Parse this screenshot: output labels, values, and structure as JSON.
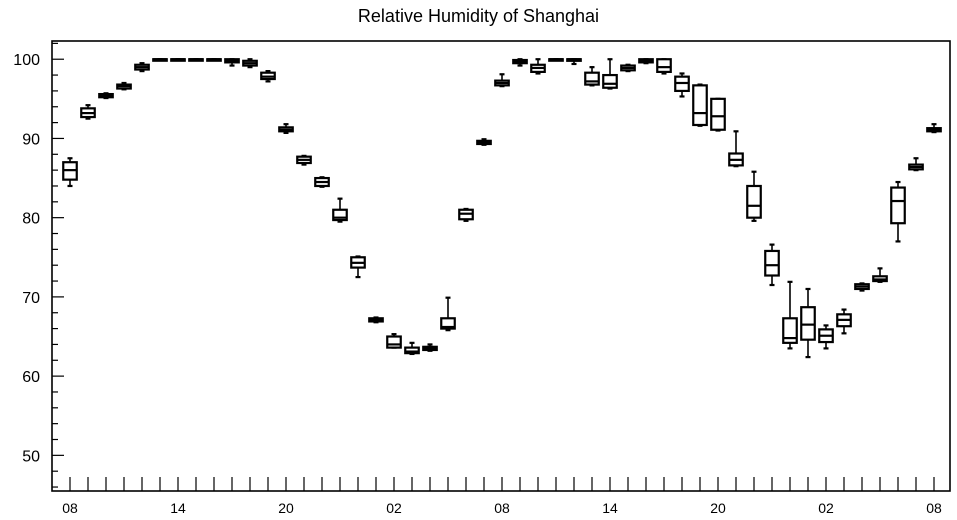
{
  "chart_data": {
    "type": "box",
    "title": "Relative Humidity of Shanghai",
    "xlabel": "",
    "ylabel": "",
    "ylim": [
      45.5,
      102.3
    ],
    "grid": false,
    "legend": "none",
    "y_ticks": [
      50,
      60,
      70,
      80,
      90,
      100
    ],
    "y_minor_step": 2,
    "x_ticks": [
      {
        "hour_index": 0,
        "label": "08"
      },
      {
        "hour_index": 6,
        "label": "14"
      },
      {
        "hour_index": 12,
        "label": "20"
      },
      {
        "hour_index": 18,
        "label": "02"
      },
      {
        "hour_index": 24,
        "label": "08"
      },
      {
        "hour_index": 30,
        "label": "14"
      },
      {
        "hour_index": 36,
        "label": "20"
      },
      {
        "hour_index": 42,
        "label": "02"
      },
      {
        "hour_index": 48,
        "label": "08"
      }
    ],
    "box_width_hours": 0.75,
    "boxes": [
      {
        "hour": 0,
        "whisker_low": 84.0,
        "q1": 84.8,
        "median": 86.0,
        "q3": 87.0,
        "whisker_high": 87.5
      },
      {
        "hour": 1,
        "whisker_low": 92.5,
        "q1": 92.7,
        "median": 93.2,
        "q3": 93.8,
        "whisker_high": 94.2
      },
      {
        "hour": 2,
        "whisker_low": 95.1,
        "q1": 95.2,
        "median": 95.4,
        "q3": 95.6,
        "whisker_high": 95.7
      },
      {
        "hour": 3,
        "whisker_low": 96.2,
        "q1": 96.3,
        "median": 96.6,
        "q3": 96.8,
        "whisker_high": 97.0
      },
      {
        "hour": 4,
        "whisker_low": 98.5,
        "q1": 98.7,
        "median": 99.0,
        "q3": 99.3,
        "whisker_high": 99.5
      },
      {
        "hour": 5,
        "whisker_low": 100.0,
        "q1": 100.0,
        "median": 100.0,
        "q3": 100.0,
        "whisker_high": 100.0
      },
      {
        "hour": 6,
        "whisker_low": 100.0,
        "q1": 100.0,
        "median": 100.0,
        "q3": 100.0,
        "whisker_high": 100.0
      },
      {
        "hour": 7,
        "whisker_low": 100.0,
        "q1": 100.0,
        "median": 100.0,
        "q3": 100.0,
        "whisker_high": 100.0
      },
      {
        "hour": 8,
        "whisker_low": 100.0,
        "q1": 100.0,
        "median": 100.0,
        "q3": 100.0,
        "whisker_high": 100.0
      },
      {
        "hour": 9,
        "whisker_low": 99.2,
        "q1": 99.6,
        "median": 99.8,
        "q3": 100.0,
        "whisker_high": 100.0
      },
      {
        "hour": 10,
        "whisker_low": 99.0,
        "q1": 99.2,
        "median": 99.5,
        "q3": 99.8,
        "whisker_high": 100.0
      },
      {
        "hour": 11,
        "whisker_low": 97.2,
        "q1": 97.5,
        "median": 97.8,
        "q3": 98.3,
        "whisker_high": 98.5
      },
      {
        "hour": 12,
        "whisker_low": 90.7,
        "q1": 90.9,
        "median": 91.1,
        "q3": 91.4,
        "whisker_high": 91.8
      },
      {
        "hour": 13,
        "whisker_low": 86.7,
        "q1": 86.9,
        "median": 87.3,
        "q3": 87.7,
        "whisker_high": 87.8
      },
      {
        "hour": 14,
        "whisker_low": 83.9,
        "q1": 84.0,
        "median": 84.5,
        "q3": 85.0,
        "whisker_high": 85.1
      },
      {
        "hour": 15,
        "whisker_low": 79.5,
        "q1": 79.7,
        "median": 80.0,
        "q3": 81.0,
        "whisker_high": 82.4
      },
      {
        "hour": 16,
        "whisker_low": 72.5,
        "q1": 73.7,
        "median": 74.3,
        "q3": 75.0,
        "whisker_high": 75.1
      },
      {
        "hour": 17,
        "whisker_low": 66.8,
        "q1": 66.9,
        "median": 67.1,
        "q3": 67.3,
        "whisker_high": 67.4
      },
      {
        "hour": 18,
        "whisker_low": 63.6,
        "q1": 63.6,
        "median": 64.0,
        "q3": 65.0,
        "whisker_high": 65.3
      },
      {
        "hour": 19,
        "whisker_low": 62.8,
        "q1": 62.9,
        "median": 63.1,
        "q3": 63.6,
        "whisker_high": 64.2
      },
      {
        "hour": 20,
        "whisker_low": 63.2,
        "q1": 63.3,
        "median": 63.5,
        "q3": 63.7,
        "whisker_high": 64.0
      },
      {
        "hour": 21,
        "whisker_low": 65.8,
        "q1": 66.0,
        "median": 66.2,
        "q3": 67.3,
        "whisker_high": 69.9
      },
      {
        "hour": 22,
        "whisker_low": 79.6,
        "q1": 79.8,
        "median": 80.5,
        "q3": 81.0,
        "whisker_high": 81.1
      },
      {
        "hour": 23,
        "whisker_low": 89.2,
        "q1": 89.3,
        "median": 89.5,
        "q3": 89.7,
        "whisker_high": 89.9
      },
      {
        "hour": 24,
        "whisker_low": 96.6,
        "q1": 96.7,
        "median": 97.0,
        "q3": 97.3,
        "whisker_high": 98.1
      },
      {
        "hour": 25,
        "whisker_low": 99.2,
        "q1": 99.5,
        "median": 99.7,
        "q3": 99.9,
        "whisker_high": 100.0
      },
      {
        "hour": 26,
        "whisker_low": 98.2,
        "q1": 98.4,
        "median": 98.9,
        "q3": 99.3,
        "whisker_high": 100.0
      },
      {
        "hour": 27,
        "whisker_low": 100.0,
        "q1": 100.0,
        "median": 100.0,
        "q3": 100.0,
        "whisker_high": 100.0
      },
      {
        "hour": 28,
        "whisker_low": 99.4,
        "q1": 99.8,
        "median": 100.0,
        "q3": 100.0,
        "whisker_high": 100.0
      },
      {
        "hour": 29,
        "whisker_low": 96.7,
        "q1": 96.8,
        "median": 97.2,
        "q3": 98.3,
        "whisker_high": 99.0
      },
      {
        "hour": 30,
        "whisker_low": 96.3,
        "q1": 96.4,
        "median": 96.9,
        "q3": 98.0,
        "whisker_high": 100.0
      },
      {
        "hour": 31,
        "whisker_low": 98.5,
        "q1": 98.6,
        "median": 98.9,
        "q3": 99.2,
        "whisker_high": 99.3
      },
      {
        "hour": 32,
        "whisker_low": 99.5,
        "q1": 99.6,
        "median": 99.8,
        "q3": 100.0,
        "whisker_high": 100.0
      },
      {
        "hour": 33,
        "whisker_low": 98.2,
        "q1": 98.4,
        "median": 99.0,
        "q3": 100.0,
        "whisker_high": 100.0
      },
      {
        "hour": 34,
        "whisker_low": 95.3,
        "q1": 96.0,
        "median": 97.0,
        "q3": 97.8,
        "whisker_high": 98.2
      },
      {
        "hour": 35,
        "whisker_low": 91.6,
        "q1": 91.7,
        "median": 93.2,
        "q3": 96.7,
        "whisker_high": 96.8
      },
      {
        "hour": 36,
        "whisker_low": 91.0,
        "q1": 91.1,
        "median": 92.8,
        "q3": 95.0,
        "whisker_high": 95.0
      },
      {
        "hour": 37,
        "whisker_low": 86.5,
        "q1": 86.6,
        "median": 87.3,
        "q3": 88.1,
        "whisker_high": 90.9
      },
      {
        "hour": 38,
        "whisker_low": 79.6,
        "q1": 80.0,
        "median": 81.5,
        "q3": 84.0,
        "whisker_high": 85.8
      },
      {
        "hour": 39,
        "whisker_low": 71.5,
        "q1": 72.7,
        "median": 74.0,
        "q3": 75.8,
        "whisker_high": 76.6
      },
      {
        "hour": 40,
        "whisker_low": 63.5,
        "q1": 64.2,
        "median": 64.8,
        "q3": 67.3,
        "whisker_high": 71.9
      },
      {
        "hour": 41,
        "whisker_low": 62.4,
        "q1": 64.6,
        "median": 66.5,
        "q3": 68.7,
        "whisker_high": 71.0
      },
      {
        "hour": 42,
        "whisker_low": 63.5,
        "q1": 64.3,
        "median": 65.1,
        "q3": 65.9,
        "whisker_high": 66.4
      },
      {
        "hour": 43,
        "whisker_low": 65.4,
        "q1": 66.3,
        "median": 67.1,
        "q3": 67.8,
        "whisker_high": 68.4
      },
      {
        "hour": 44,
        "whisker_low": 70.8,
        "q1": 71.0,
        "median": 71.3,
        "q3": 71.6,
        "whisker_high": 71.7
      },
      {
        "hour": 45,
        "whisker_low": 71.9,
        "q1": 72.0,
        "median": 72.2,
        "q3": 72.6,
        "whisker_high": 73.6
      },
      {
        "hour": 46,
        "whisker_low": 77.0,
        "q1": 79.3,
        "median": 82.1,
        "q3": 83.8,
        "whisker_high": 84.5
      },
      {
        "hour": 47,
        "whisker_low": 86.0,
        "q1": 86.1,
        "median": 86.4,
        "q3": 86.7,
        "whisker_high": 87.5
      },
      {
        "hour": 48,
        "whisker_low": 90.8,
        "q1": 90.9,
        "median": 91.1,
        "q3": 91.3,
        "whisker_high": 91.8
      }
    ]
  }
}
